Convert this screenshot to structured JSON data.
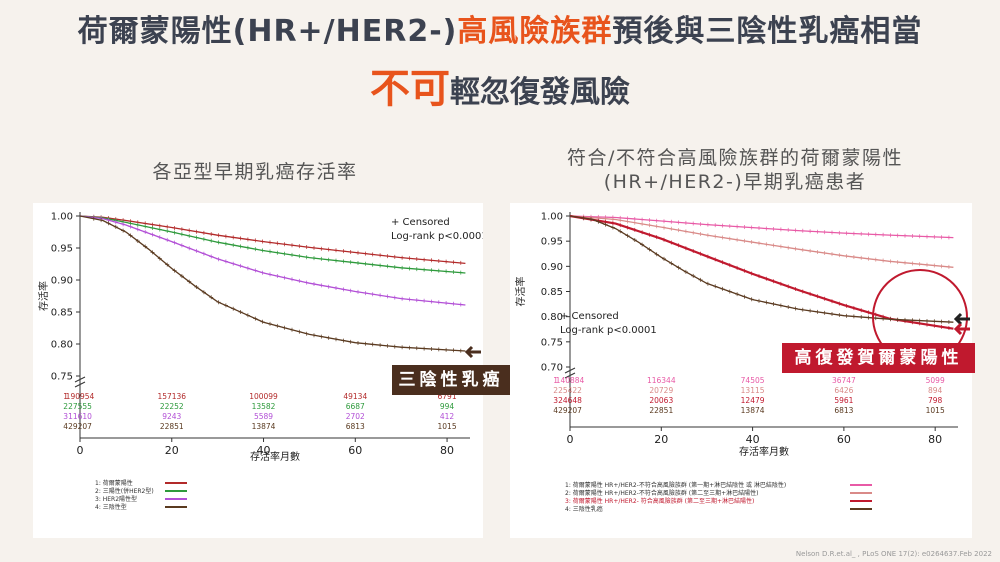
{
  "title": {
    "line1_a": "荷爾蒙陽性(HR+/HER2-)",
    "line1_b": "高風險族群",
    "line1_c": "預後與三陰性乳癌相當",
    "line2_a": "不可",
    "line2_b": "輕忽復發風險"
  },
  "left_subtitle": "各亞型早期乳癌存活率",
  "right_subtitle_1": "符合/不符合高風險族群的荷爾蒙陽性",
  "right_subtitle_2": "(HR+/HER2-)早期乳癌患者",
  "callout_left": "三陰性乳癌",
  "callout_right": "高復發賀爾蒙陽性",
  "footer": "Nelson D.R.et.al_ , PLoS ONE 17(2): e0264637.Feb 2022",
  "colors": {
    "series1_left": "#b22a2a",
    "series2_left": "#2e9a3c",
    "series3_left": "#b24fd6",
    "series4_left": "#5a3a20",
    "series1_right": "#e85aa6",
    "series2_right": "#d98a88",
    "series3_right": "#c0192e",
    "series4_right": "#5a3a20",
    "accent": "#e8541c",
    "callout_bg": "#4a2e1e",
    "callout_red": "#c0192e"
  },
  "chart_data": [
    {
      "type": "line",
      "title": "各亞型早期乳癌存活率",
      "xlabel": "存活率月數",
      "ylabel": "存活率",
      "xlim": [
        0,
        85
      ],
      "ylim": [
        0.75,
        1.0
      ],
      "xticks": [
        "0",
        "20",
        "40",
        "60",
        "80"
      ],
      "yticks": [
        "0.75",
        "0.80",
        "0.85",
        "0.90",
        "0.95",
        "1.00"
      ],
      "annotation_1": "+ Censored",
      "annotation_2": "Log-rank p<0.0001",
      "series": [
        {
          "name": "荷爾蒙陽性",
          "x": [
            0,
            5,
            10,
            20,
            30,
            40,
            50,
            60,
            70,
            84
          ],
          "values": [
            1.0,
            0.998,
            0.993,
            0.982,
            0.97,
            0.96,
            0.951,
            0.943,
            0.935,
            0.926
          ]
        },
        {
          "name": "三陽性(併HER2型)",
          "x": [
            0,
            5,
            10,
            20,
            30,
            40,
            50,
            60,
            70,
            84
          ],
          "values": [
            1.0,
            0.997,
            0.99,
            0.975,
            0.959,
            0.946,
            0.935,
            0.927,
            0.919,
            0.911
          ]
        },
        {
          "name": "HER2陽性型",
          "x": [
            0,
            5,
            10,
            20,
            30,
            40,
            50,
            60,
            70,
            84
          ],
          "values": [
            1.0,
            0.996,
            0.986,
            0.96,
            0.933,
            0.911,
            0.895,
            0.882,
            0.871,
            0.861
          ]
        },
        {
          "name": "三陰性型",
          "x": [
            0,
            5,
            10,
            15,
            20,
            25,
            30,
            40,
            50,
            60,
            70,
            84
          ],
          "values": [
            1.0,
            0.993,
            0.975,
            0.948,
            0.918,
            0.891,
            0.866,
            0.834,
            0.815,
            0.802,
            0.795,
            0.789
          ]
        }
      ],
      "risk_table": [
        {
          "row": "1",
          "values": [
            "190954",
            "157136",
            "100099",
            "49134",
            "6791"
          ]
        },
        {
          "row": "2",
          "values": [
            "27555",
            "22252",
            "13582",
            "6687",
            "994"
          ]
        },
        {
          "row": "3",
          "values": [
            "11610",
            "9243",
            "5589",
            "2702",
            "412"
          ]
        },
        {
          "row": "4",
          "values": [
            "29207",
            "22851",
            "13874",
            "6813",
            "1015"
          ]
        }
      ],
      "legend": [
        "1: 荷爾蒙陽性",
        "2: 三陽性(併HER2型)",
        "3: HER2陽性型",
        "4: 三陰性型"
      ]
    },
    {
      "type": "line",
      "title": "符合/不符合高風險族群的荷爾蒙陽性 (HR+/HER2-)早期乳癌患者",
      "xlabel": "存活率月數",
      "ylabel": "存活率",
      "xlim": [
        0,
        85
      ],
      "ylim": [
        0.7,
        1.0
      ],
      "xticks": [
        "0",
        "20",
        "40",
        "60",
        "80"
      ],
      "yticks": [
        "0.70",
        "0.75",
        "0.80",
        "0.85",
        "0.90",
        "0.95",
        "1.00"
      ],
      "annotation_1": "+ Censored",
      "annotation_2": "Log-rank p<0.0001",
      "series": [
        {
          "name": "荷爾蒙陽性 HR+/HER2-不符合高風險族群 (第一期+淋巴結陰性 或 淋巴結陰性)",
          "x": [
            0,
            10,
            20,
            30,
            40,
            50,
            60,
            70,
            84
          ],
          "values": [
            1.0,
            0.997,
            0.99,
            0.983,
            0.977,
            0.971,
            0.966,
            0.962,
            0.957
          ]
        },
        {
          "name": "荷爾蒙陽性 HR+/HER2-不符合高風險族群 (第二至三期+淋巴結陽性)",
          "x": [
            0,
            10,
            20,
            30,
            40,
            50,
            60,
            70,
            84
          ],
          "values": [
            1.0,
            0.993,
            0.978,
            0.962,
            0.948,
            0.934,
            0.921,
            0.91,
            0.898
          ]
        },
        {
          "name": "荷爾蒙陽性 HR+/HER2- 符合高風險族群 (第二至三期+淋巴結陽性)",
          "x": [
            0,
            10,
            20,
            30,
            40,
            50,
            60,
            70,
            84
          ],
          "values": [
            1.0,
            0.985,
            0.955,
            0.92,
            0.885,
            0.853,
            0.823,
            0.796,
            0.776
          ]
        },
        {
          "name": "三陰性乳癌",
          "x": [
            0,
            5,
            10,
            15,
            20,
            25,
            30,
            40,
            50,
            60,
            70,
            84
          ],
          "values": [
            1.0,
            0.993,
            0.975,
            0.948,
            0.918,
            0.891,
            0.866,
            0.834,
            0.815,
            0.802,
            0.795,
            0.789
          ]
        }
      ],
      "risk_table": [
        {
          "row": "1",
          "values": [
            "140884",
            "116344",
            "74505",
            "36747",
            "5099"
          ]
        },
        {
          "row": "2",
          "values": [
            "25422",
            "20729",
            "13115",
            "6426",
            "894"
          ]
        },
        {
          "row": "3",
          "values": [
            "24648",
            "20063",
            "12479",
            "5961",
            "798"
          ]
        },
        {
          "row": "4",
          "values": [
            "29207",
            "22851",
            "13874",
            "6813",
            "1015"
          ]
        }
      ],
      "legend": [
        "1: 荷爾蒙陽性 HR+/HER2-不符合高風險族群 (第一期+淋巴結陰性 或 淋巴結陰性)",
        "2: 荷爾蒙陽性 HR+/HER2-不符合高風險族群 (第二至三期+淋巴結陽性)",
        "3: 荷爾蒙陽性 HR+/HER2- 符合高風險族群 (第二至三期+淋巴結陽性)",
        "4: 三陰性乳癌"
      ]
    }
  ]
}
